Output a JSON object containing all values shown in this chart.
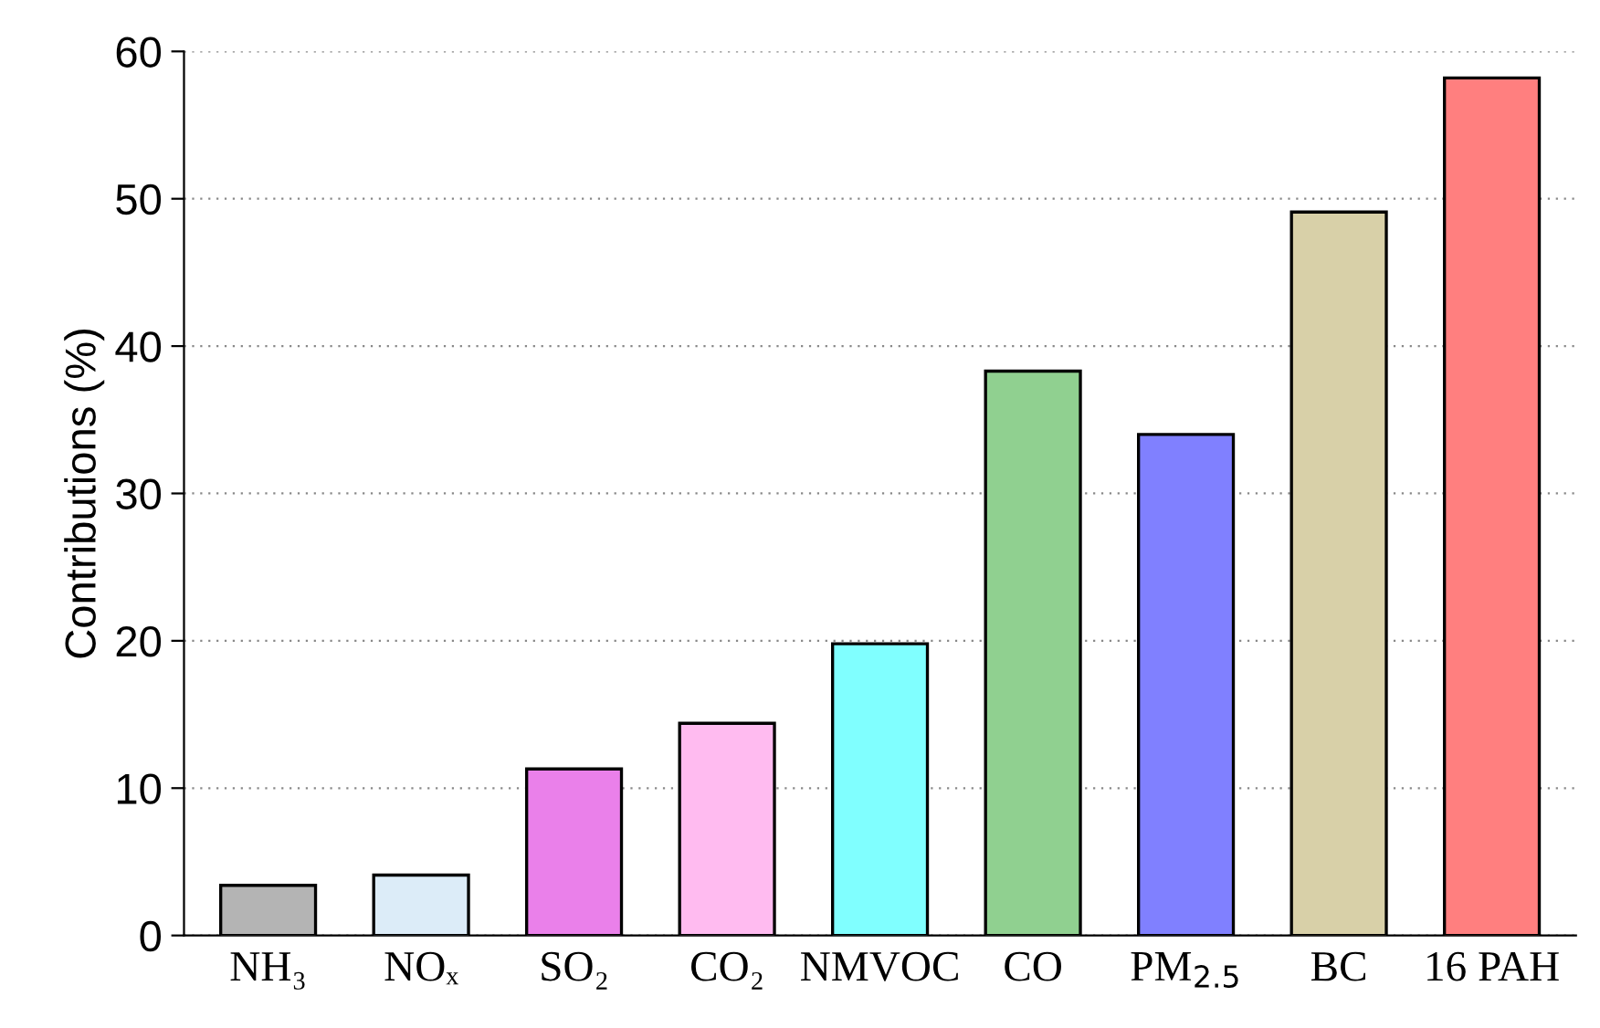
{
  "chart_data": {
    "type": "bar",
    "ylabel": "Contributions (%)",
    "categories": [
      "NH₃",
      "NOₓ",
      "SO₂",
      "CO₂",
      "NMVOC",
      "CO",
      "PM$_{2.5}$",
      "BC",
      "16 PAH"
    ],
    "values": [
      3.4,
      4.1,
      11.3,
      14.4,
      19.8,
      38.3,
      34.0,
      49.1,
      58.2
    ],
    "colors": [
      "#b4b4b4",
      "#dcecf8",
      "#ea80ea",
      "#ffbbf0",
      "#80ffff",
      "#90d090",
      "#8080ff",
      "#d8d0a8",
      "#ff7f7f"
    ],
    "ylim": [
      0,
      60
    ],
    "yticks": [
      0,
      10,
      20,
      30,
      40,
      50,
      60
    ],
    "grid": "y"
  }
}
